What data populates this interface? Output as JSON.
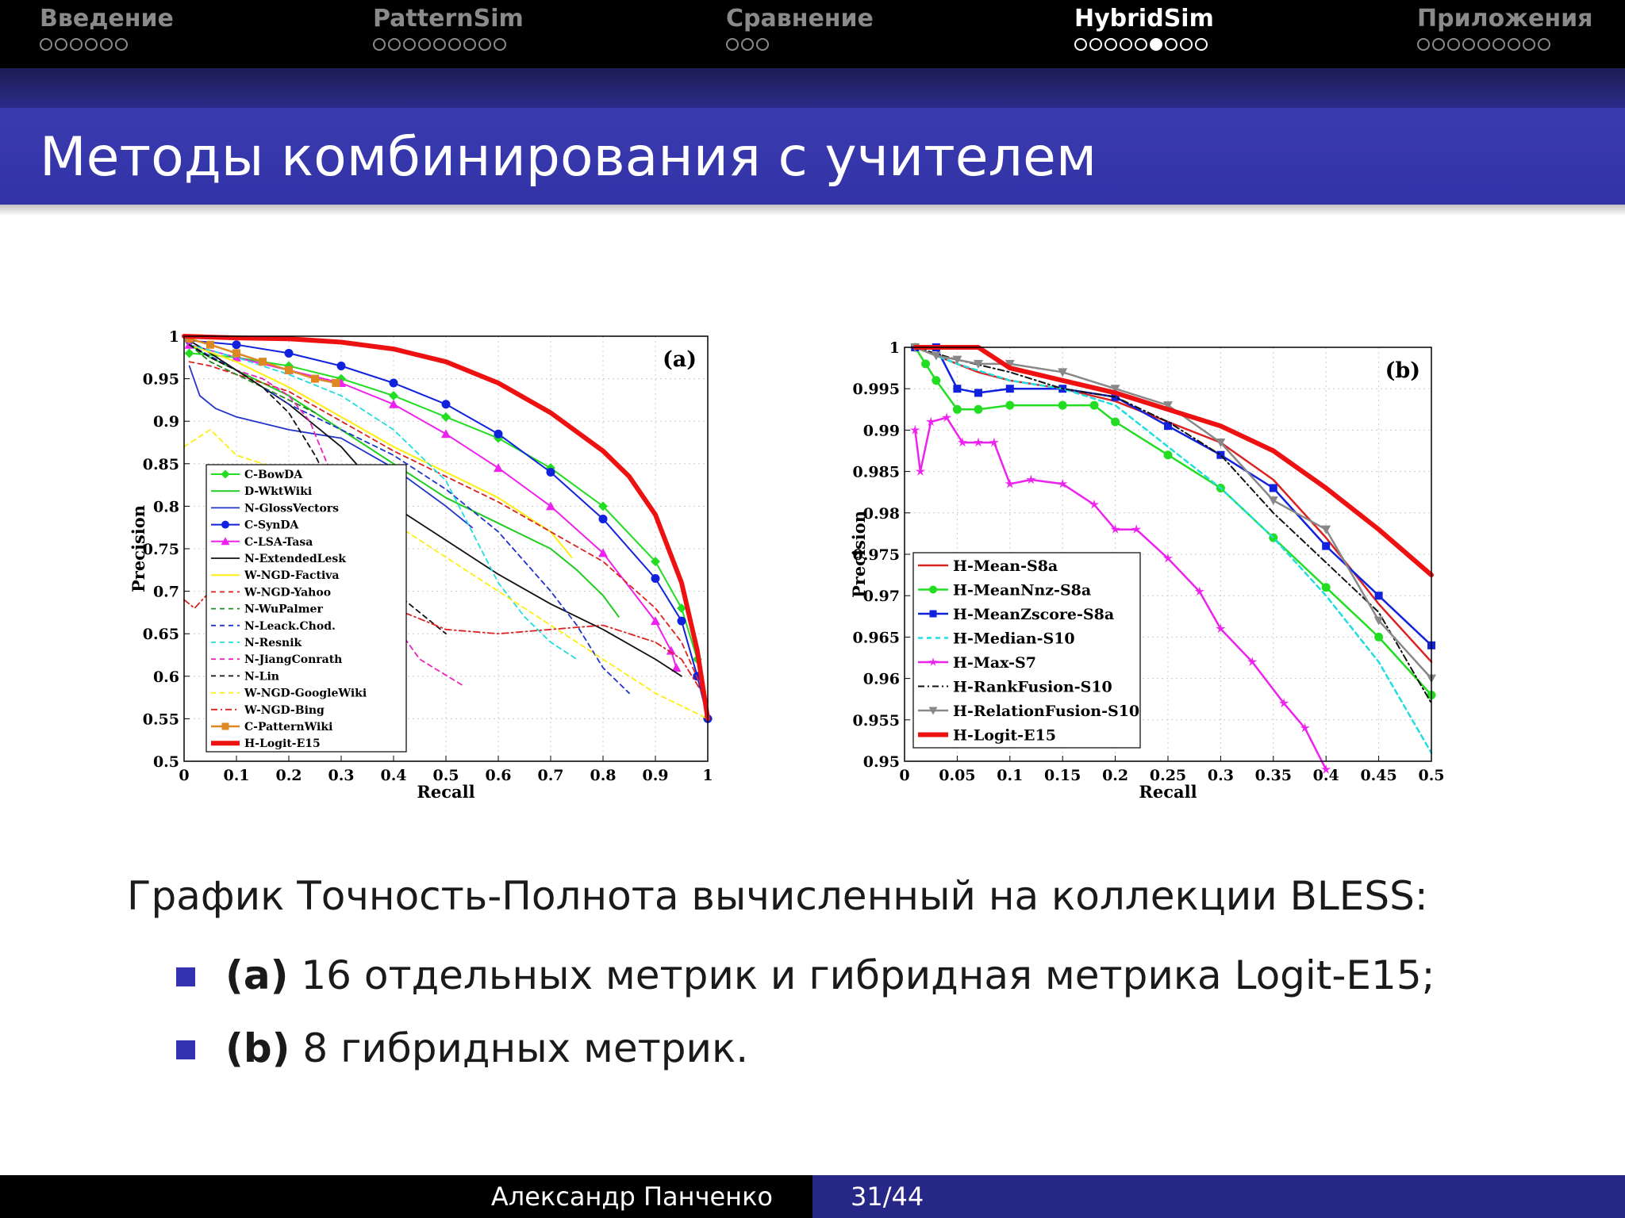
{
  "nav": {
    "sections": [
      {
        "title": "Введение",
        "dots": 6,
        "filled": -1,
        "active": false
      },
      {
        "title": "PatternSim",
        "dots": 9,
        "filled": -1,
        "active": false
      },
      {
        "title": "Сравнение",
        "dots": 3,
        "filled": -1,
        "active": false
      },
      {
        "title": "HybridSim",
        "dots": 9,
        "filled": 5,
        "active": true
      },
      {
        "title": "Приложения",
        "dots": 9,
        "filled": -1,
        "active": false
      }
    ]
  },
  "frame": {
    "title": "Методы комбинирования с учителем"
  },
  "caption": {
    "text": "График Точность-Полнота вычисленный на коллекции BLESS:",
    "bullets": [
      {
        "bold": "(a)",
        "text": " 16 отдельных метрик и гибридная метрика Logit-E15;"
      },
      {
        "bold": "(b)",
        "text": " 8 гибридных метрик."
      }
    ]
  },
  "footer": {
    "author": "Александр Панченко",
    "page": "31/44"
  },
  "chart_data": [
    {
      "type": "line",
      "panel_label": "(a)",
      "xlabel": "Recall",
      "ylabel": "Precision",
      "xlim": [
        0,
        1
      ],
      "ylim": [
        0.5,
        1
      ],
      "xticks": [
        "0",
        "0.1",
        "0.2",
        "0.3",
        "0.4",
        "0.5",
        "0.6",
        "0.7",
        "0.8",
        "0.9",
        "1"
      ],
      "yticks": [
        "0.5",
        "0.55",
        "0.6",
        "0.65",
        "0.7",
        "0.75",
        "0.8",
        "0.85",
        "0.9",
        "0.95",
        "1"
      ],
      "grid": true,
      "legend": "bottom-left",
      "series": [
        {
          "name": "C-BowDA",
          "color": "#22dd22",
          "dash": "",
          "marker": "diamond",
          "width": 2,
          "x": [
            0.01,
            0.1,
            0.2,
            0.3,
            0.4,
            0.5,
            0.6,
            0.7,
            0.8,
            0.9,
            0.95,
            0.98,
            1.0
          ],
          "y": [
            0.98,
            0.975,
            0.965,
            0.95,
            0.93,
            0.905,
            0.88,
            0.845,
            0.8,
            0.735,
            0.68,
            0.62,
            0.55
          ]
        },
        {
          "name": "D-WktWiki",
          "color": "#22cc22",
          "dash": "",
          "marker": "",
          "width": 2,
          "x": [
            0.01,
            0.05,
            0.1,
            0.2,
            0.3,
            0.4,
            0.5,
            0.6,
            0.7,
            0.75,
            0.8,
            0.83
          ],
          "y": [
            0.99,
            0.975,
            0.96,
            0.93,
            0.89,
            0.85,
            0.81,
            0.78,
            0.75,
            0.725,
            0.695,
            0.67
          ]
        },
        {
          "name": "N-GlossVectors",
          "color": "#2233cc",
          "dash": "",
          "marker": "",
          "width": 1.8,
          "x": [
            0.01,
            0.03,
            0.06,
            0.1,
            0.2,
            0.3,
            0.4,
            0.5,
            0.55
          ],
          "y": [
            0.965,
            0.93,
            0.915,
            0.905,
            0.89,
            0.88,
            0.845,
            0.8,
            0.775
          ]
        },
        {
          "name": "C-SynDA",
          "color": "#1122dd",
          "dash": "",
          "marker": "circle",
          "width": 2,
          "x": [
            0.01,
            0.1,
            0.2,
            0.3,
            0.4,
            0.5,
            0.6,
            0.7,
            0.8,
            0.9,
            0.95,
            0.98,
            1.0
          ],
          "y": [
            0.995,
            0.99,
            0.98,
            0.965,
            0.945,
            0.92,
            0.885,
            0.84,
            0.785,
            0.715,
            0.665,
            0.6,
            0.55
          ]
        },
        {
          "name": "C-LSA-Tasa",
          "color": "#ee22ee",
          "dash": "",
          "marker": "triangle",
          "width": 2,
          "x": [
            0.01,
            0.1,
            0.2,
            0.3,
            0.4,
            0.5,
            0.6,
            0.7,
            0.8,
            0.9,
            0.93,
            0.94
          ],
          "y": [
            0.99,
            0.975,
            0.96,
            0.945,
            0.92,
            0.885,
            0.845,
            0.8,
            0.745,
            0.665,
            0.63,
            0.61
          ]
        },
        {
          "name": "N-ExtendedLesk",
          "color": "#111111",
          "dash": "",
          "marker": "",
          "width": 1.8,
          "x": [
            0.01,
            0.05,
            0.1,
            0.2,
            0.3,
            0.4,
            0.5,
            0.6,
            0.7,
            0.8,
            0.9,
            0.95
          ],
          "y": [
            0.995,
            0.98,
            0.96,
            0.92,
            0.87,
            0.8,
            0.76,
            0.72,
            0.685,
            0.655,
            0.62,
            0.6
          ]
        },
        {
          "name": "W-NGD-Factiva",
          "color": "#ffee11",
          "dash": "",
          "marker": "",
          "width": 2,
          "x": [
            0.01,
            0.1,
            0.2,
            0.3,
            0.4,
            0.5,
            0.6,
            0.7,
            0.74
          ],
          "y": [
            0.99,
            0.97,
            0.94,
            0.905,
            0.87,
            0.84,
            0.81,
            0.77,
            0.74
          ]
        },
        {
          "name": "W-NGD-Yahoo",
          "color": "#dd2222",
          "dash": "6,5",
          "marker": "",
          "width": 1.8,
          "x": [
            0.01,
            0.05,
            0.1,
            0.2,
            0.3,
            0.4,
            0.5,
            0.6,
            0.7,
            0.8,
            0.9,
            0.95,
            1.0
          ],
          "y": [
            0.97,
            0.965,
            0.955,
            0.935,
            0.9,
            0.865,
            0.835,
            0.805,
            0.77,
            0.735,
            0.68,
            0.64,
            0.57
          ]
        },
        {
          "name": "N-WuPalmer",
          "color": "#228822",
          "dash": "6,5",
          "marker": "",
          "width": 1.8,
          "x": [
            0.01,
            0.05,
            0.1,
            0.15,
            0.2,
            0.25
          ],
          "y": [
            0.99,
            0.97,
            0.955,
            0.94,
            0.925,
            0.91
          ]
        },
        {
          "name": "N-Leack.Chod.",
          "color": "#2233cc",
          "dash": "6,5",
          "marker": "",
          "width": 1.8,
          "x": [
            0.01,
            0.1,
            0.2,
            0.3,
            0.4,
            0.5,
            0.6,
            0.7,
            0.75,
            0.8,
            0.85
          ],
          "y": [
            0.99,
            0.96,
            0.92,
            0.89,
            0.86,
            0.82,
            0.77,
            0.7,
            0.66,
            0.61,
            0.58
          ]
        },
        {
          "name": "N-Resnik",
          "color": "#22dddd",
          "dash": "6,5",
          "marker": "",
          "width": 1.8,
          "x": [
            0.01,
            0.1,
            0.2,
            0.3,
            0.4,
            0.5,
            0.55,
            0.6,
            0.65,
            0.7,
            0.75
          ],
          "y": [
            0.99,
            0.975,
            0.955,
            0.93,
            0.89,
            0.83,
            0.77,
            0.71,
            0.67,
            0.64,
            0.62
          ]
        },
        {
          "name": "N-JiangConrath",
          "color": "#ee22bb",
          "dash": "6,5",
          "marker": "",
          "width": 1.8,
          "x": [
            0.01,
            0.05,
            0.1,
            0.15,
            0.2,
            0.24,
            0.28,
            0.32,
            0.38,
            0.45,
            0.53
          ],
          "y": [
            0.99,
            0.975,
            0.96,
            0.95,
            0.93,
            0.9,
            0.84,
            0.76,
            0.68,
            0.62,
            0.59
          ]
        },
        {
          "name": "N-Lin",
          "color": "#111111",
          "dash": "6,5",
          "marker": "",
          "width": 1.8,
          "x": [
            0.01,
            0.05,
            0.1,
            0.15,
            0.2,
            0.25,
            0.3,
            0.35,
            0.4,
            0.45,
            0.5
          ],
          "y": [
            0.99,
            0.975,
            0.96,
            0.94,
            0.91,
            0.86,
            0.8,
            0.75,
            0.7,
            0.675,
            0.65
          ]
        },
        {
          "name": "W-NGD-GoogleWiki",
          "color": "#ffee11",
          "dash": "6,5",
          "marker": "",
          "width": 1.8,
          "x": [
            0,
            0.05,
            0.1,
            0.2,
            0.3,
            0.4,
            0.5,
            0.6,
            0.7,
            0.8,
            0.9,
            1.0
          ],
          "y": [
            0.87,
            0.89,
            0.86,
            0.84,
            0.81,
            0.78,
            0.74,
            0.7,
            0.66,
            0.62,
            0.58,
            0.55
          ]
        },
        {
          "name": "W-NGD-Bing",
          "color": "#dd2222",
          "dash": "8,4,2,4",
          "marker": "",
          "width": 1.8,
          "x": [
            0,
            0.02,
            0.05,
            0.1,
            0.15,
            0.2,
            0.3,
            0.35,
            0.4,
            0.5,
            0.6,
            0.7,
            0.8,
            0.9,
            0.95,
            1.0
          ],
          "y": [
            0.69,
            0.68,
            0.7,
            0.72,
            0.715,
            0.7,
            0.695,
            0.685,
            0.68,
            0.655,
            0.65,
            0.655,
            0.66,
            0.64,
            0.62,
            0.57
          ]
        },
        {
          "name": "C-PatternWiki",
          "color": "#dd8822",
          "dash": "",
          "marker": "square",
          "width": 2.5,
          "x": [
            0.01,
            0.05,
            0.1,
            0.15,
            0.2,
            0.25,
            0.29
          ],
          "y": [
            0.997,
            0.99,
            0.98,
            0.97,
            0.96,
            0.95,
            0.945
          ]
        },
        {
          "name": "H-Logit-E15",
          "color": "#ee1111",
          "dash": "",
          "marker": "",
          "width": 6,
          "x": [
            0,
            0.1,
            0.2,
            0.3,
            0.4,
            0.5,
            0.6,
            0.7,
            0.8,
            0.85,
            0.9,
            0.95,
            0.98,
            1.0
          ],
          "y": [
            1.0,
            0.998,
            0.997,
            0.993,
            0.985,
            0.97,
            0.945,
            0.91,
            0.865,
            0.835,
            0.79,
            0.71,
            0.63,
            0.55
          ]
        }
      ]
    },
    {
      "type": "line",
      "panel_label": "(b)",
      "xlabel": "Recall",
      "ylabel": "Precision",
      "xlim": [
        0,
        0.5
      ],
      "ylim": [
        0.95,
        1
      ],
      "xticks": [
        "0",
        "0.05",
        "0.1",
        "0.15",
        "0.2",
        "0.25",
        "0.3",
        "0.35",
        "0.4",
        "0.45",
        "0.5"
      ],
      "yticks": [
        "0.95",
        "0.955",
        "0.96",
        "0.965",
        "0.97",
        "0.975",
        "0.98",
        "0.985",
        "0.99",
        "0.995",
        "1"
      ],
      "grid": true,
      "legend": "bottom-left",
      "series": [
        {
          "name": "H-Mean-S8a",
          "color": "#dd2222",
          "dash": "",
          "marker": "",
          "width": 2.5,
          "x": [
            0.01,
            0.05,
            0.07,
            0.1,
            0.15,
            0.2,
            0.25,
            0.3,
            0.35,
            0.4,
            0.45,
            0.5
          ],
          "y": [
            1.0,
            0.998,
            0.997,
            0.996,
            0.995,
            0.9935,
            0.991,
            0.9885,
            0.984,
            0.977,
            0.969,
            0.962
          ]
        },
        {
          "name": "H-MeanNnz-S8a",
          "color": "#22dd22",
          "dash": "",
          "marker": "circle",
          "width": 2.5,
          "x": [
            0.01,
            0.02,
            0.03,
            0.05,
            0.07,
            0.1,
            0.15,
            0.18,
            0.2,
            0.25,
            0.3,
            0.35,
            0.4,
            0.45,
            0.5
          ],
          "y": [
            1.0,
            0.998,
            0.996,
            0.9925,
            0.9925,
            0.993,
            0.993,
            0.993,
            0.991,
            0.987,
            0.983,
            0.977,
            0.971,
            0.965,
            0.958
          ]
        },
        {
          "name": "H-MeanZscore-S8a",
          "color": "#1122dd",
          "dash": "",
          "marker": "square",
          "width": 2.5,
          "x": [
            0.01,
            0.03,
            0.05,
            0.07,
            0.1,
            0.15,
            0.2,
            0.25,
            0.3,
            0.35,
            0.4,
            0.45,
            0.5
          ],
          "y": [
            1.0,
            1.0,
            0.995,
            0.9945,
            0.995,
            0.995,
            0.994,
            0.9905,
            0.987,
            0.983,
            0.976,
            0.97,
            0.964
          ]
        },
        {
          "name": "H-Median-S10",
          "color": "#22dddd",
          "dash": "6,5",
          "marker": "",
          "width": 2.5,
          "x": [
            0.01,
            0.05,
            0.1,
            0.15,
            0.2,
            0.25,
            0.3,
            0.35,
            0.4,
            0.45,
            0.5
          ],
          "y": [
            1.0,
            0.998,
            0.996,
            0.995,
            0.993,
            0.988,
            0.983,
            0.977,
            0.97,
            0.962,
            0.951
          ]
        },
        {
          "name": "H-Max-S7",
          "color": "#ee22ee",
          "dash": "",
          "marker": "star",
          "width": 2.5,
          "x": [
            0.01,
            0.015,
            0.025,
            0.04,
            0.055,
            0.07,
            0.085,
            0.1,
            0.12,
            0.15,
            0.18,
            0.2,
            0.22,
            0.25,
            0.28,
            0.3,
            0.33,
            0.36,
            0.38,
            0.4
          ],
          "y": [
            0.99,
            0.985,
            0.991,
            0.9915,
            0.9885,
            0.9885,
            0.9885,
            0.9835,
            0.984,
            0.9835,
            0.981,
            0.978,
            0.978,
            0.9745,
            0.9705,
            0.966,
            0.962,
            0.957,
            0.954,
            0.949
          ]
        },
        {
          "name": "H-RankFusion-S10",
          "color": "#111111",
          "dash": "8,4,2,4",
          "marker": "",
          "width": 2,
          "x": [
            0.01,
            0.05,
            0.1,
            0.15,
            0.2,
            0.25,
            0.3,
            0.35,
            0.4,
            0.45,
            0.5
          ],
          "y": [
            1.0,
            0.9985,
            0.997,
            0.995,
            0.994,
            0.991,
            0.987,
            0.98,
            0.974,
            0.968,
            0.957
          ]
        },
        {
          "name": "H-RelationFusion-S10",
          "color": "#888888",
          "dash": "",
          "marker": "triangle-down",
          "width": 2.5,
          "x": [
            0.01,
            0.03,
            0.05,
            0.07,
            0.1,
            0.15,
            0.2,
            0.25,
            0.3,
            0.35,
            0.4,
            0.45,
            0.5
          ],
          "y": [
            1.0,
            0.999,
            0.9985,
            0.998,
            0.998,
            0.997,
            0.995,
            0.993,
            0.9885,
            0.9815,
            0.978,
            0.967,
            0.96
          ]
        },
        {
          "name": "H-Logit-E15",
          "color": "#ee1111",
          "dash": "",
          "marker": "",
          "width": 6,
          "x": [
            0.01,
            0.05,
            0.07,
            0.1,
            0.15,
            0.2,
            0.25,
            0.3,
            0.35,
            0.4,
            0.45,
            0.5
          ],
          "y": [
            1.0,
            1.0,
            1.0,
            0.9975,
            0.996,
            0.9945,
            0.9925,
            0.9905,
            0.9875,
            0.983,
            0.978,
            0.9725
          ]
        }
      ]
    }
  ]
}
